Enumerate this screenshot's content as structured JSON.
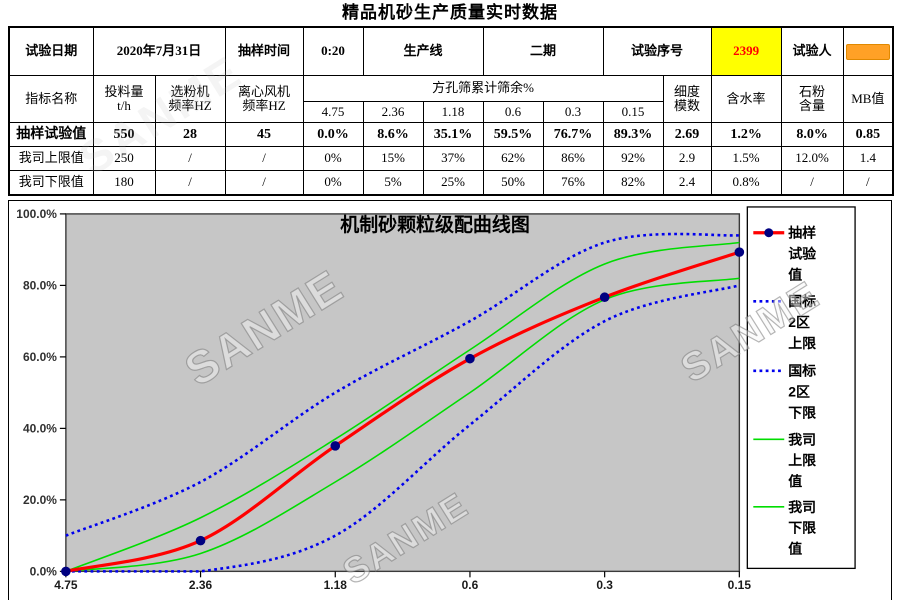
{
  "page_title": "精品机砂生产质量实时数据",
  "info": {
    "date_label": "试验日期",
    "date_value": "2020年7月31日",
    "time_label": "抽样时间",
    "time_value": "0:20",
    "line_label": "生产线",
    "line_value": "二期",
    "serial_label": "试验序号",
    "serial_value": "2399",
    "tester_label": "试验人",
    "tester_value": ""
  },
  "table": {
    "header": {
      "name": "指标名称",
      "feed": "投料量\nt/h",
      "classifier": "选粉机\n频率HZ",
      "fan": "离心风机\n频率HZ",
      "sieve_group": "方孔筛累计筛余%",
      "sieves": [
        "4.75",
        "2.36",
        "1.18",
        "0.6",
        "0.3",
        "0.15"
      ],
      "fineness": "细度\n模数",
      "moisture": "含水率",
      "stone_powder": "石粉\n含量",
      "mb": "MB值"
    },
    "rows": [
      {
        "label": "抽样试验值",
        "bold": true,
        "cells": [
          "550",
          "28",
          "45",
          "0.0%",
          "8.6%",
          "35.1%",
          "59.5%",
          "76.7%",
          "89.3%",
          "2.69",
          "1.2%",
          "8.0%",
          "0.85"
        ]
      },
      {
        "label": "我司上限值",
        "bold": false,
        "cells": [
          "250",
          "/",
          "/",
          "0%",
          "15%",
          "37%",
          "62%",
          "86%",
          "92%",
          "2.9",
          "1.5%",
          "12.0%",
          "1.4"
        ]
      },
      {
        "label": "我司下限值",
        "bold": false,
        "cells": [
          "180",
          "/",
          "/",
          "0%",
          "5%",
          "25%",
          "50%",
          "76%",
          "82%",
          "2.4",
          "0.8%",
          "/",
          "/"
        ]
      }
    ]
  },
  "colors": {
    "serial_bg": "#FFFF00",
    "serial_text": "#FF0000",
    "tester_bg": "#FFA126"
  },
  "chart_data": {
    "type": "line",
    "title": "机制砂颗粒级配曲线图",
    "x_labels": [
      "4.75",
      "2.36",
      "1.18",
      "0.6",
      "0.3",
      "0.15"
    ],
    "y_ticks": [
      "100.0%",
      "80.0%",
      "60.0%",
      "40.0%",
      "20.0%",
      "0.0%"
    ],
    "ylim": [
      0,
      100
    ],
    "grid": false,
    "legend_position": "right",
    "plot_bg": "#C6C6C6",
    "watermark": "SANME",
    "series": [
      {
        "name": "抽样试验值",
        "legend_label": "抽样\n试验\n值",
        "color": "#FF0000",
        "style": "solid",
        "width": 3.2,
        "marker": true,
        "marker_color": "#000080",
        "values": [
          0,
          8.6,
          35.1,
          59.5,
          76.7,
          89.3
        ]
      },
      {
        "name": "国标2区上限",
        "legend_label": "国标\n2区\n上限",
        "color": "#0000EE",
        "style": "dotted",
        "width": 2.6,
        "marker": false,
        "values": [
          10,
          25,
          50,
          70,
          92,
          94
        ]
      },
      {
        "name": "国标2区下限",
        "legend_label": "国标\n2区\n下限",
        "color": "#0000EE",
        "style": "dotted",
        "width": 2.6,
        "marker": false,
        "values": [
          0,
          0,
          10,
          41,
          70,
          80
        ]
      },
      {
        "name": "我司上限值",
        "legend_label": "我司\n上限\n值",
        "color": "#00DD00",
        "style": "solid",
        "width": 1.6,
        "marker": false,
        "values": [
          0,
          15,
          37,
          62,
          86,
          92
        ]
      },
      {
        "name": "我司下限值",
        "legend_label": "我司\n下限\n值",
        "color": "#00DD00",
        "style": "solid",
        "width": 1.6,
        "marker": false,
        "values": [
          0,
          5,
          25,
          50,
          76,
          82
        ]
      }
    ]
  }
}
